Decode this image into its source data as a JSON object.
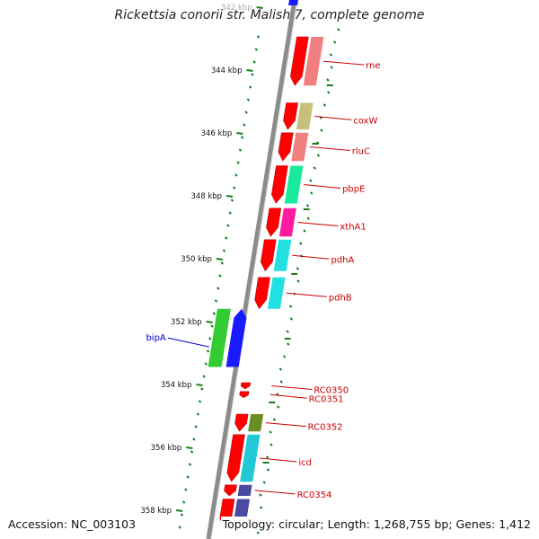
{
  "title": "Rickettsia conorii str. Malish 7, complete genome",
  "footer": {
    "accession": "Accession: NC_003103",
    "topology": "Topology: circular; Length: 1,268,755 bp; Genes: 1,412"
  },
  "colors": {
    "backbone": "#8c8c8c",
    "forward_cds": "#ff0000",
    "reverse_cds": "#1a1aff",
    "forward_label": "#cc0000",
    "reverse_label": "#0000cc",
    "gc_ticks": "#1a7f1a"
  },
  "ruler": {
    "unit": "kbp",
    "ticks": [
      {
        "kbp": 342,
        "label": "342 kbp"
      },
      {
        "kbp": 344,
        "label": "344 kbp"
      },
      {
        "kbp": 346,
        "label": "346 kbp"
      },
      {
        "kbp": 348,
        "label": "348 kbp"
      },
      {
        "kbp": 350,
        "label": "350 kbp"
      },
      {
        "kbp": 352,
        "label": "352 kbp"
      },
      {
        "kbp": 354,
        "label": "354 kbp"
      },
      {
        "kbp": 356,
        "label": "356 kbp"
      },
      {
        "kbp": 358,
        "label": "358 kbp"
      }
    ]
  },
  "genes": [
    {
      "name": "rne",
      "strand": "forward",
      "start_kbp": 343.0,
      "end_kbp": 344.55,
      "cog_color": "#f08080"
    },
    {
      "name": "coxW",
      "strand": "forward",
      "start_kbp": 345.1,
      "end_kbp": 345.95,
      "cog_color": "#c8c07a"
    },
    {
      "name": "rluC",
      "strand": "forward",
      "start_kbp": 346.05,
      "end_kbp": 346.95,
      "cog_color": "#f08080"
    },
    {
      "name": "pbpE",
      "strand": "forward",
      "start_kbp": 347.1,
      "end_kbp": 348.3,
      "cog_color": "#1ae89a"
    },
    {
      "name": "xthA1",
      "strand": "forward",
      "start_kbp": 348.45,
      "end_kbp": 349.35,
      "cog_color": "#ff1aa0"
    },
    {
      "name": "pdhA",
      "strand": "forward",
      "start_kbp": 349.45,
      "end_kbp": 350.45,
      "cog_color": "#22e0e0"
    },
    {
      "name": "pdhB",
      "strand": "forward",
      "start_kbp": 350.65,
      "end_kbp": 351.65,
      "cog_color": "#22e0e0"
    },
    {
      "name": "bipA",
      "strand": "reverse",
      "start_kbp": 351.65,
      "end_kbp": 353.5,
      "cog_color": "#33cc33"
    },
    {
      "name": "RC0350",
      "strand": "forward",
      "start_kbp": 354.0,
      "end_kbp": 354.2,
      "cog_color": ""
    },
    {
      "name": "RC0351",
      "strand": "forward",
      "start_kbp": 354.28,
      "end_kbp": 354.48,
      "cog_color": ""
    },
    {
      "name": "RC0352",
      "strand": "forward",
      "start_kbp": 355.0,
      "end_kbp": 355.55,
      "cog_color": "#6b8e23"
    },
    {
      "name": "icd",
      "strand": "forward",
      "start_kbp": 355.65,
      "end_kbp": 357.15,
      "cog_color": "#22c8d6"
    },
    {
      "name": "RC0354",
      "strand": "forward",
      "start_kbp": 357.25,
      "end_kbp": 357.6,
      "cog_color": "#4a4aa0"
    },
    {
      "name": "",
      "strand": "forward",
      "start_kbp": 357.7,
      "end_kbp": 358.6,
      "cog_color": "#4a4aa0"
    }
  ]
}
